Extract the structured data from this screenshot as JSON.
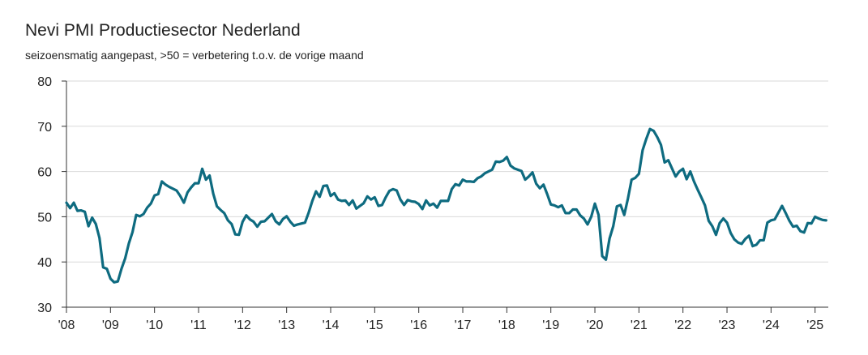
{
  "chart_data": {
    "type": "line",
    "title": "Nevi PMI Productiesector Nederland",
    "subtitle": "seizoensmatig aangepast, >50 = verbetering t.o.v. de vorige maand",
    "xlabel": "",
    "ylabel": "",
    "ylim": [
      30,
      80
    ],
    "yticks": [
      30,
      40,
      50,
      60,
      70,
      80
    ],
    "xlim": [
      2008.0,
      2025.3
    ],
    "xticks": [
      {
        "value": 2008,
        "label": "'08"
      },
      {
        "value": 2009,
        "label": "'09"
      },
      {
        "value": 2010,
        "label": "'10"
      },
      {
        "value": 2011,
        "label": "'11"
      },
      {
        "value": 2012,
        "label": "'12"
      },
      {
        "value": 2013,
        "label": "'13"
      },
      {
        "value": 2014,
        "label": "'14"
      },
      {
        "value": 2015,
        "label": "'15"
      },
      {
        "value": 2016,
        "label": "'16"
      },
      {
        "value": 2017,
        "label": "'17"
      },
      {
        "value": 2018,
        "label": "'18"
      },
      {
        "value": 2019,
        "label": "'19"
      },
      {
        "value": 2020,
        "label": "'20"
      },
      {
        "value": 2021,
        "label": "'21"
      },
      {
        "value": 2022,
        "label": "'22"
      },
      {
        "value": 2023,
        "label": "'23"
      },
      {
        "value": 2024,
        "label": "'24"
      },
      {
        "value": 2025,
        "label": "'25"
      }
    ],
    "grid": "horizontal",
    "line_color": "#0e6b80",
    "grid_color": "#d9d9d9",
    "series": [
      {
        "x": [
          "2008-01",
          "2008-02",
          "2008-03",
          "2008-04",
          "2008-05",
          "2008-06",
          "2008-07",
          "2008-08",
          "2008-09",
          "2008-10",
          "2008-11",
          "2008-12",
          "2009-01",
          "2009-02",
          "2009-03",
          "2009-04",
          "2009-05",
          "2009-06",
          "2009-07",
          "2009-08",
          "2009-09",
          "2009-10",
          "2009-11",
          "2009-12",
          "2010-01",
          "2010-02",
          "2010-03",
          "2010-04",
          "2010-05",
          "2010-06",
          "2010-07",
          "2010-08",
          "2010-09",
          "2010-10",
          "2010-11",
          "2010-12",
          "2011-01",
          "2011-02",
          "2011-03",
          "2011-04",
          "2011-05",
          "2011-06",
          "2011-07",
          "2011-08",
          "2011-09",
          "2011-10",
          "2011-11",
          "2011-12",
          "2012-01",
          "2012-02",
          "2012-03",
          "2012-04",
          "2012-05",
          "2012-06",
          "2012-07",
          "2012-08",
          "2012-09",
          "2012-10",
          "2012-11",
          "2012-12",
          "2013-01",
          "2013-02",
          "2013-03",
          "2013-04",
          "2013-05",
          "2013-06",
          "2013-07",
          "2013-08",
          "2013-09",
          "2013-10",
          "2013-11",
          "2013-12",
          "2014-01",
          "2014-02",
          "2014-03",
          "2014-04",
          "2014-05",
          "2014-06",
          "2014-07",
          "2014-08",
          "2014-09",
          "2014-10",
          "2014-11",
          "2014-12",
          "2015-01",
          "2015-02",
          "2015-03",
          "2015-04",
          "2015-05",
          "2015-06",
          "2015-07",
          "2015-08",
          "2015-09",
          "2015-10",
          "2015-11",
          "2015-12",
          "2016-01",
          "2016-02",
          "2016-03",
          "2016-04",
          "2016-05",
          "2016-06",
          "2016-07",
          "2016-08",
          "2016-09",
          "2016-10",
          "2016-11",
          "2016-12",
          "2017-01",
          "2017-02",
          "2017-03",
          "2017-04",
          "2017-05",
          "2017-06",
          "2017-07",
          "2017-08",
          "2017-09",
          "2017-10",
          "2017-11",
          "2017-12",
          "2018-01",
          "2018-02",
          "2018-03",
          "2018-04",
          "2018-05",
          "2018-06",
          "2018-07",
          "2018-08",
          "2018-09",
          "2018-10",
          "2018-11",
          "2018-12",
          "2019-01",
          "2019-02",
          "2019-03",
          "2019-04",
          "2019-05",
          "2019-06",
          "2019-07",
          "2019-08",
          "2019-09",
          "2019-10",
          "2019-11",
          "2019-12",
          "2020-01",
          "2020-02",
          "2020-03",
          "2020-04",
          "2020-05",
          "2020-06",
          "2020-07",
          "2020-08",
          "2020-09",
          "2020-10",
          "2020-11",
          "2020-12",
          "2021-01",
          "2021-02",
          "2021-03",
          "2021-04",
          "2021-05",
          "2021-06",
          "2021-07",
          "2021-08",
          "2021-09",
          "2021-10",
          "2021-11",
          "2021-12",
          "2022-01",
          "2022-02",
          "2022-03",
          "2022-04",
          "2022-05",
          "2022-06",
          "2022-07",
          "2022-08",
          "2022-09",
          "2022-10",
          "2022-11",
          "2022-12",
          "2023-01",
          "2023-02",
          "2023-03",
          "2023-04",
          "2023-05",
          "2023-06",
          "2023-07",
          "2023-08",
          "2023-09",
          "2023-10",
          "2023-11",
          "2023-12",
          "2024-01",
          "2024-02",
          "2024-03",
          "2024-04",
          "2024-05",
          "2024-06",
          "2024-07",
          "2024-08",
          "2024-09",
          "2024-10",
          "2024-11",
          "2024-12",
          "2025-01",
          "2025-02",
          "2025-03",
          "2025-04"
        ],
        "values": [
          53.1,
          51.9,
          53.1,
          51.3,
          51.4,
          51.1,
          47.9,
          49.8,
          48.4,
          45.3,
          38.8,
          38.5,
          36.3,
          35.5,
          35.7,
          38.5,
          40.8,
          44.1,
          46.6,
          50.4,
          50.1,
          50.6,
          52.0,
          52.9,
          54.7,
          55.0,
          57.8,
          57.1,
          56.6,
          56.2,
          55.8,
          54.6,
          53.1,
          55.4,
          56.5,
          57.4,
          57.4,
          60.6,
          58.2,
          59.1,
          55.1,
          52.3,
          51.5,
          50.8,
          49.2,
          48.4,
          46.1,
          46.0,
          48.9,
          50.3,
          49.4,
          48.9,
          47.8,
          48.9,
          49.0,
          49.8,
          50.6,
          49.0,
          48.3,
          49.5,
          50.1,
          48.9,
          48.0,
          48.3,
          48.5,
          48.7,
          50.9,
          53.5,
          55.6,
          54.4,
          56.8,
          56.9,
          54.6,
          55.2,
          53.8,
          53.5,
          53.6,
          52.6,
          53.6,
          51.8,
          52.4,
          53.0,
          54.5,
          53.8,
          54.3,
          52.4,
          52.6,
          54.3,
          55.7,
          56.1,
          55.8,
          53.8,
          52.6,
          53.7,
          53.4,
          53.3,
          52.8,
          51.7,
          53.6,
          52.5,
          52.9,
          52.0,
          53.5,
          53.5,
          53.5,
          56.1,
          57.2,
          56.9,
          58.2,
          57.8,
          57.8,
          57.7,
          58.5,
          58.9,
          59.6,
          60.0,
          60.4,
          62.2,
          62.1,
          62.4,
          63.2,
          61.3,
          60.7,
          60.4,
          60.1,
          58.2,
          58.9,
          59.8,
          57.3,
          56.3,
          57.1,
          55.0,
          52.7,
          52.5,
          52.1,
          52.5,
          50.8,
          50.8,
          51.6,
          51.6,
          50.3,
          49.6,
          48.3,
          50.0,
          52.9,
          50.4,
          41.3,
          40.5,
          45.2,
          47.9,
          52.3,
          52.6,
          50.4,
          54.0,
          58.2,
          58.6,
          59.5,
          64.7,
          67.2,
          69.4,
          69.0,
          67.6,
          65.9,
          62.0,
          62.5,
          60.7,
          58.9,
          60.0,
          60.6,
          58.3,
          60.0,
          57.8,
          56.0,
          54.3,
          52.5,
          49.1,
          47.9,
          46.0,
          48.6,
          49.6,
          48.7,
          46.4,
          45.0,
          44.3,
          44.0,
          45.1,
          45.8,
          43.5,
          43.8,
          44.8,
          44.8,
          48.7,
          49.2,
          49.4,
          50.9,
          52.4,
          50.8,
          49.1,
          47.8,
          48.0,
          46.8,
          46.5,
          48.6,
          48.5,
          50.0,
          49.6,
          49.3,
          49.2
        ]
      }
    ]
  }
}
